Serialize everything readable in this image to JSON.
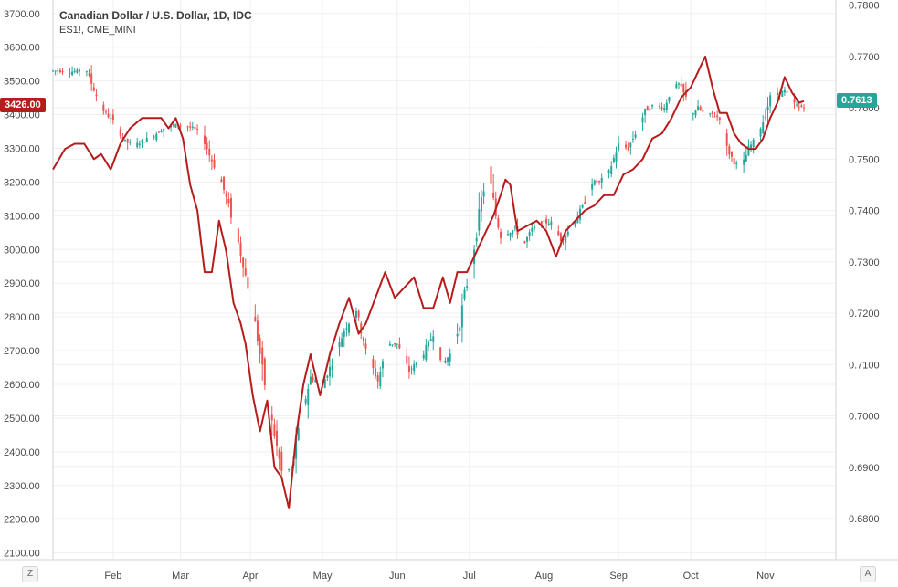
{
  "legend": {
    "title": "Canadian Dollar / U.S. Dollar, 1D, IDC",
    "subtitle": "ES1!, CME_MINI"
  },
  "tags": {
    "left_last": "3426.00",
    "right_last": "0.7613"
  },
  "buttons": {
    "left": "Z",
    "right": "A"
  },
  "colors": {
    "up": "#26a69a",
    "down": "#ef5350",
    "overlay": "#b71c1c",
    "grid": "#eef0f3",
    "right_tag": "#26a69a",
    "left_tag": "#b71c1c"
  },
  "chart_data": {
    "type": "line",
    "x_ticks": [
      "Feb",
      "Mar",
      "Apr",
      "May",
      "Jun",
      "Jul",
      "Aug",
      "Sep",
      "Oct",
      "Nov"
    ],
    "left_axis": {
      "ticks": [
        "3700.00",
        "3600.00",
        "3500.00",
        "3400.00",
        "3300.00",
        "3200.00",
        "3100.00",
        "3000.00",
        "2900.00",
        "2800.00",
        "2700.00",
        "2600.00",
        "2500.00",
        "2400.00",
        "2300.00",
        "2200.00",
        "2100.00"
      ],
      "range": [
        2080,
        3740
      ]
    },
    "right_axis": {
      "ticks": [
        "0.7800",
        "0.7700",
        "0.7600",
        "0.7500",
        "0.7400",
        "0.7300",
        "0.7200",
        "0.7100",
        "0.7000",
        "0.6900",
        "0.6800"
      ],
      "range": [
        0.672,
        0.781
      ]
    },
    "candles_series": "ES1!, CME_MINI",
    "line_series": "Canadian Dollar / U.S. Dollar, 1D, IDC",
    "candle_anchors": [
      [
        0,
        3530
      ],
      [
        8,
        3528
      ],
      [
        14,
        3530
      ],
      [
        20,
        3420
      ],
      [
        25,
        3380
      ],
      [
        30,
        3320
      ],
      [
        34,
        3310
      ],
      [
        40,
        3330
      ],
      [
        46,
        3360
      ],
      [
        52,
        3370
      ],
      [
        58,
        3360
      ],
      [
        62,
        3340
      ],
      [
        65,
        3280
      ],
      [
        70,
        3200
      ],
      [
        73,
        3130
      ],
      [
        77,
        3020
      ],
      [
        81,
        2890
      ],
      [
        84,
        2780
      ],
      [
        88,
        2600
      ],
      [
        92,
        2450
      ],
      [
        95,
        2340
      ],
      [
        99,
        2350
      ],
      [
        103,
        2500
      ],
      [
        107,
        2620
      ],
      [
        112,
        2600
      ],
      [
        117,
        2680
      ],
      [
        121,
        2760
      ],
      [
        126,
        2820
      ],
      [
        130,
        2700
      ],
      [
        135,
        2610
      ],
      [
        139,
        2720
      ],
      [
        143,
        2720
      ],
      [
        148,
        2640
      ],
      [
        153,
        2680
      ],
      [
        158,
        2750
      ],
      [
        162,
        2660
      ],
      [
        166,
        2700
      ],
      [
        169,
        2780
      ],
      [
        171,
        2870
      ],
      [
        173,
        2920
      ],
      [
        176,
        3050
      ],
      [
        178,
        3150
      ],
      [
        181,
        3230
      ],
      [
        184,
        3100
      ],
      [
        186,
        3040
      ],
      [
        189,
        3050
      ],
      [
        192,
        3060
      ],
      [
        196,
        3020
      ],
      [
        199,
        3060
      ],
      [
        203,
        3080
      ],
      [
        207,
        3080
      ],
      [
        211,
        3030
      ],
      [
        215,
        3060
      ],
      [
        218,
        3100
      ],
      [
        221,
        3140
      ],
      [
        224,
        3200
      ],
      [
        227,
        3200
      ],
      [
        231,
        3230
      ],
      [
        235,
        3310
      ],
      [
        239,
        3300
      ],
      [
        243,
        3360
      ],
      [
        246,
        3410
      ],
      [
        250,
        3430
      ],
      [
        254,
        3420
      ],
      [
        257,
        3480
      ],
      [
        260,
        3490
      ],
      [
        263,
        3450
      ],
      [
        265,
        3400
      ],
      [
        268,
        3420
      ],
      [
        271,
        3400
      ],
      [
        274,
        3400
      ],
      [
        277,
        3390
      ],
      [
        280,
        3300
      ],
      [
        283,
        3260
      ],
      [
        286,
        3240
      ],
      [
        289,
        3300
      ],
      [
        292,
        3330
      ],
      [
        295,
        3380
      ],
      [
        298,
        3450
      ],
      [
        301,
        3460
      ],
      [
        304,
        3470
      ],
      [
        307,
        3440
      ],
      [
        310,
        3420
      ],
      [
        312,
        3426
      ]
    ],
    "line_anchors": [
      [
        0,
        0.748
      ],
      [
        5,
        0.752
      ],
      [
        9,
        0.753
      ],
      [
        13,
        0.753
      ],
      [
        17,
        0.75
      ],
      [
        20,
        0.751
      ],
      [
        24,
        0.748
      ],
      [
        28,
        0.753
      ],
      [
        32,
        0.756
      ],
      [
        37,
        0.758
      ],
      [
        41,
        0.758
      ],
      [
        45,
        0.758
      ],
      [
        48,
        0.756
      ],
      [
        51,
        0.758
      ],
      [
        54,
        0.754
      ],
      [
        57,
        0.745
      ],
      [
        60,
        0.74
      ],
      [
        63,
        0.728
      ],
      [
        66,
        0.728
      ],
      [
        69,
        0.738
      ],
      [
        72,
        0.732
      ],
      [
        75,
        0.722
      ],
      [
        78,
        0.718
      ],
      [
        80,
        0.714
      ],
      [
        83,
        0.704
      ],
      [
        86,
        0.697
      ],
      [
        89,
        0.703
      ],
      [
        92,
        0.69
      ],
      [
        95,
        0.688
      ],
      [
        98,
        0.682
      ],
      [
        101,
        0.696
      ],
      [
        104,
        0.706
      ],
      [
        107,
        0.712
      ],
      [
        111,
        0.704
      ],
      [
        115,
        0.712
      ],
      [
        119,
        0.718
      ],
      [
        123,
        0.723
      ],
      [
        127,
        0.716
      ],
      [
        130,
        0.718
      ],
      [
        134,
        0.723
      ],
      [
        138,
        0.728
      ],
      [
        142,
        0.723
      ],
      [
        146,
        0.725
      ],
      [
        150,
        0.727
      ],
      [
        154,
        0.721
      ],
      [
        158,
        0.721
      ],
      [
        162,
        0.727
      ],
      [
        165,
        0.722
      ],
      [
        168,
        0.728
      ],
      [
        172,
        0.728
      ],
      [
        175,
        0.731
      ],
      [
        179,
        0.735
      ],
      [
        183,
        0.739
      ],
      [
        186,
        0.743
      ],
      [
        188,
        0.746
      ],
      [
        190,
        0.745
      ],
      [
        193,
        0.736
      ],
      [
        197,
        0.737
      ],
      [
        201,
        0.738
      ],
      [
        205,
        0.736
      ],
      [
        209,
        0.731
      ],
      [
        213,
        0.736
      ],
      [
        217,
        0.738
      ],
      [
        221,
        0.74
      ],
      [
        225,
        0.741
      ],
      [
        229,
        0.743
      ],
      [
        233,
        0.743
      ],
      [
        237,
        0.747
      ],
      [
        241,
        0.748
      ],
      [
        245,
        0.75
      ],
      [
        249,
        0.754
      ],
      [
        253,
        0.755
      ],
      [
        257,
        0.758
      ],
      [
        261,
        0.762
      ],
      [
        265,
        0.764
      ],
      [
        268,
        0.767
      ],
      [
        271,
        0.77
      ],
      [
        274,
        0.764
      ],
      [
        277,
        0.759
      ],
      [
        280,
        0.759
      ],
      [
        283,
        0.755
      ],
      [
        286,
        0.753
      ],
      [
        289,
        0.752
      ],
      [
        292,
        0.752
      ],
      [
        295,
        0.754
      ],
      [
        298,
        0.758
      ],
      [
        301,
        0.761
      ],
      [
        304,
        0.766
      ],
      [
        307,
        0.763
      ],
      [
        310,
        0.761
      ],
      [
        312,
        0.7613
      ]
    ],
    "days": 313,
    "month_start_days": [
      25,
      53,
      82,
      112,
      143,
      173,
      204,
      235,
      265,
      296
    ]
  }
}
